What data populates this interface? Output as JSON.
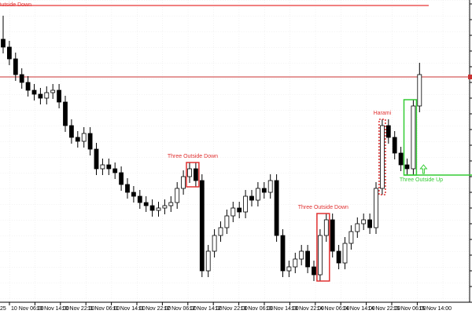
{
  "chart_data": {
    "type": "candlestick",
    "xlabels": [
      "25",
      "10 Nov 06:00",
      "10 Nov 14:00",
      "10 Nov 22:00",
      "11 Nov 06:00",
      "11 Nov 14:00",
      "11 Nov 22:00",
      "12 Nov 06:00",
      "12 Nov 14:00",
      "12 Nov 22:00",
      "13 Nov 06:00",
      "13 Nov 14:00",
      "13 Nov 22:00",
      "14 Nov 06:00",
      "14 Nov 14:00",
      "14 Nov 22:00",
      "15 Nov 06:00",
      "15 Nov 14:00"
    ],
    "ylim": [
      15,
      400
    ],
    "open": [
      350,
      340,
      325,
      305,
      295,
      285,
      280,
      275,
      282,
      285,
      270,
      240,
      225,
      220,
      230,
      210,
      185,
      190,
      185,
      180,
      165,
      155,
      150,
      142,
      138,
      132,
      135,
      138,
      142,
      160,
      175,
      185,
      170,
      55,
      80,
      100,
      110,
      125,
      135,
      130,
      150,
      145,
      160,
      155,
      170,
      100,
      55,
      60,
      70,
      80,
      60,
      50,
      100,
      120,
      80,
      65,
      90,
      105,
      115,
      120,
      110,
      160,
      240,
      225,
      205,
      190,
      185,
      265
    ],
    "high": [
      380,
      348,
      333,
      313,
      303,
      293,
      288,
      290,
      293,
      293,
      278,
      248,
      233,
      238,
      238,
      218,
      198,
      198,
      193,
      188,
      173,
      163,
      158,
      150,
      146,
      143,
      146,
      150,
      168,
      183,
      193,
      193,
      178,
      88,
      108,
      118,
      133,
      143,
      143,
      158,
      158,
      168,
      168,
      178,
      178,
      108,
      68,
      78,
      88,
      88,
      68,
      108,
      128,
      128,
      88,
      98,
      113,
      123,
      128,
      128,
      168,
      248,
      248,
      233,
      213,
      198,
      273,
      320
    ],
    "low": [
      332,
      317,
      297,
      287,
      277,
      272,
      267,
      267,
      274,
      262,
      232,
      217,
      212,
      212,
      202,
      177,
      177,
      177,
      172,
      157,
      147,
      142,
      134,
      130,
      124,
      124,
      127,
      130,
      134,
      152,
      167,
      162,
      47,
      47,
      72,
      92,
      102,
      117,
      122,
      122,
      137,
      137,
      147,
      147,
      92,
      47,
      47,
      52,
      62,
      52,
      42,
      42,
      92,
      72,
      57,
      57,
      82,
      97,
      107,
      102,
      102,
      152,
      217,
      197,
      182,
      177,
      177,
      257
    ],
    "close": [
      340,
      325,
      305,
      295,
      285,
      280,
      275,
      282,
      285,
      270,
      240,
      225,
      220,
      230,
      210,
      185,
      190,
      185,
      180,
      165,
      155,
      150,
      142,
      138,
      132,
      135,
      138,
      142,
      160,
      175,
      185,
      170,
      55,
      80,
      100,
      110,
      125,
      135,
      130,
      150,
      145,
      160,
      155,
      170,
      100,
      55,
      60,
      70,
      80,
      60,
      50,
      100,
      120,
      80,
      65,
      90,
      105,
      115,
      120,
      110,
      160,
      240,
      225,
      205,
      190,
      185,
      265,
      305
    ],
    "up_color": "#ffffff",
    "down_color": "#000000",
    "level_line": 302,
    "level_color": "#c83232",
    "top_line": 393,
    "top_label": "Outside Down",
    "patterns": [
      {
        "label": "Three Outside Down",
        "color": "#e03030",
        "from": 30,
        "to": 31
      },
      {
        "label": "Three Outside Down",
        "color": "#e03030",
        "from": 51,
        "to": 52
      },
      {
        "label": "Harami",
        "color": "#e03030",
        "from": 61,
        "to": 61
      },
      {
        "label": "Three Outside Up",
        "color": "#33cc33",
        "from": 65,
        "to": 66
      }
    ]
  }
}
